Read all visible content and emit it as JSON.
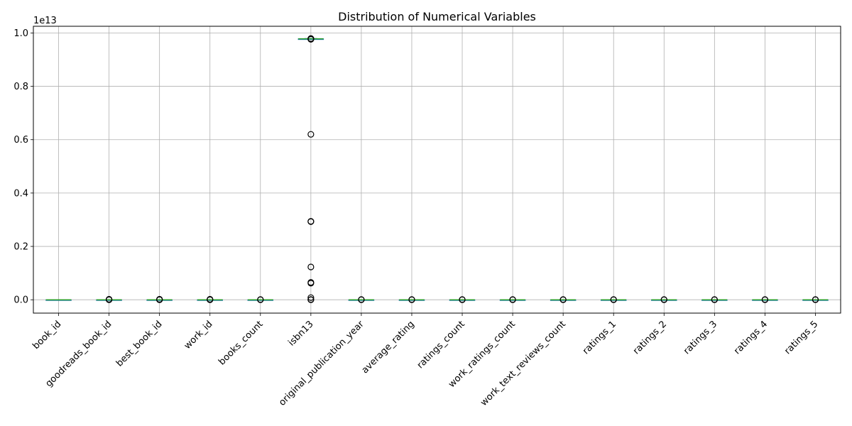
{
  "chart_data": {
    "type": "box",
    "title": "Distribution of Numerical Variables",
    "xlabel": "",
    "ylabel": "",
    "y_scale_label": "1e13",
    "ylim": [
      -0.05,
      1.025
    ],
    "y_ticks": [
      0.0,
      0.2,
      0.4,
      0.6,
      0.8,
      1.0
    ],
    "y_tick_labels": [
      "0.0",
      "0.2",
      "0.4",
      "0.6",
      "0.8",
      "1.0"
    ],
    "grid": true,
    "box_color": "#2ca02c",
    "categories": [
      "book_id",
      "goodreads_book_id",
      "best_book_id",
      "work_id",
      "books_count",
      "isbn13",
      "original_publication_year",
      "average_rating",
      "ratings_count",
      "work_ratings_count",
      "work_text_reviews_count",
      "ratings_1",
      "ratings_2",
      "ratings_3",
      "ratings_4",
      "ratings_5"
    ],
    "boxes": [
      {
        "category": "book_id",
        "q1": 0,
        "median": 0,
        "q3": 0,
        "whisker_low": 0,
        "whisker_high": 0,
        "outliers": []
      },
      {
        "category": "goodreads_book_id",
        "q1": 0,
        "median": 0,
        "q3": 0,
        "whisker_low": 0,
        "whisker_high": 0,
        "outliers": [
          0.0,
          0.001,
          0.002
        ]
      },
      {
        "category": "best_book_id",
        "q1": 0,
        "median": 0,
        "q3": 0,
        "whisker_low": 0,
        "whisker_high": 0,
        "outliers": [
          0.0,
          0.001,
          0.002
        ]
      },
      {
        "category": "work_id",
        "q1": 0,
        "median": 0,
        "q3": 0,
        "whisker_low": 0,
        "whisker_high": 0,
        "outliers": [
          0.0,
          0.001,
          0.002
        ]
      },
      {
        "category": "books_count",
        "q1": 0,
        "median": 0,
        "q3": 0,
        "whisker_low": 0,
        "whisker_high": 0,
        "outliers": [
          0.0,
          0.001
        ]
      },
      {
        "category": "isbn13",
        "q1": 0.978,
        "median": 0.978,
        "q3": 0.978,
        "whisker_low": 0.977,
        "whisker_high": 0.979,
        "outliers": [
          0.976,
          0.977,
          0.978,
          0.979,
          0.62,
          0.294,
          0.293,
          0.123,
          0.065,
          0.062,
          0.008,
          0.001,
          0.0
        ]
      },
      {
        "category": "original_publication_year",
        "q1": 0,
        "median": 0,
        "q3": 0,
        "whisker_low": 0,
        "whisker_high": 0,
        "outliers": [
          0.0,
          0.001
        ]
      },
      {
        "category": "average_rating",
        "q1": 0,
        "median": 0,
        "q3": 0,
        "whisker_low": 0,
        "whisker_high": 0,
        "outliers": [
          0.0,
          0.001
        ]
      },
      {
        "category": "ratings_count",
        "q1": 0,
        "median": 0,
        "q3": 0,
        "whisker_low": 0,
        "whisker_high": 0,
        "outliers": [
          0.0,
          0.001
        ]
      },
      {
        "category": "work_ratings_count",
        "q1": 0,
        "median": 0,
        "q3": 0,
        "whisker_low": 0,
        "whisker_high": 0,
        "outliers": [
          0.0,
          0.001
        ]
      },
      {
        "category": "work_text_reviews_count",
        "q1": 0,
        "median": 0,
        "q3": 0,
        "whisker_low": 0,
        "whisker_high": 0,
        "outliers": [
          0.0,
          0.001
        ]
      },
      {
        "category": "ratings_1",
        "q1": 0,
        "median": 0,
        "q3": 0,
        "whisker_low": 0,
        "whisker_high": 0,
        "outliers": [
          0.0,
          0.001
        ]
      },
      {
        "category": "ratings_2",
        "q1": 0,
        "median": 0,
        "q3": 0,
        "whisker_low": 0,
        "whisker_high": 0,
        "outliers": [
          0.0,
          0.001
        ]
      },
      {
        "category": "ratings_3",
        "q1": 0,
        "median": 0,
        "q3": 0,
        "whisker_low": 0,
        "whisker_high": 0,
        "outliers": [
          0.0,
          0.001
        ]
      },
      {
        "category": "ratings_4",
        "q1": 0,
        "median": 0,
        "q3": 0,
        "whisker_low": 0,
        "whisker_high": 0,
        "outliers": [
          0.0,
          0.001
        ]
      },
      {
        "category": "ratings_5",
        "q1": 0,
        "median": 0,
        "q3": 0,
        "whisker_low": 0,
        "whisker_high": 0,
        "outliers": [
          0.0,
          0.001
        ]
      }
    ]
  }
}
